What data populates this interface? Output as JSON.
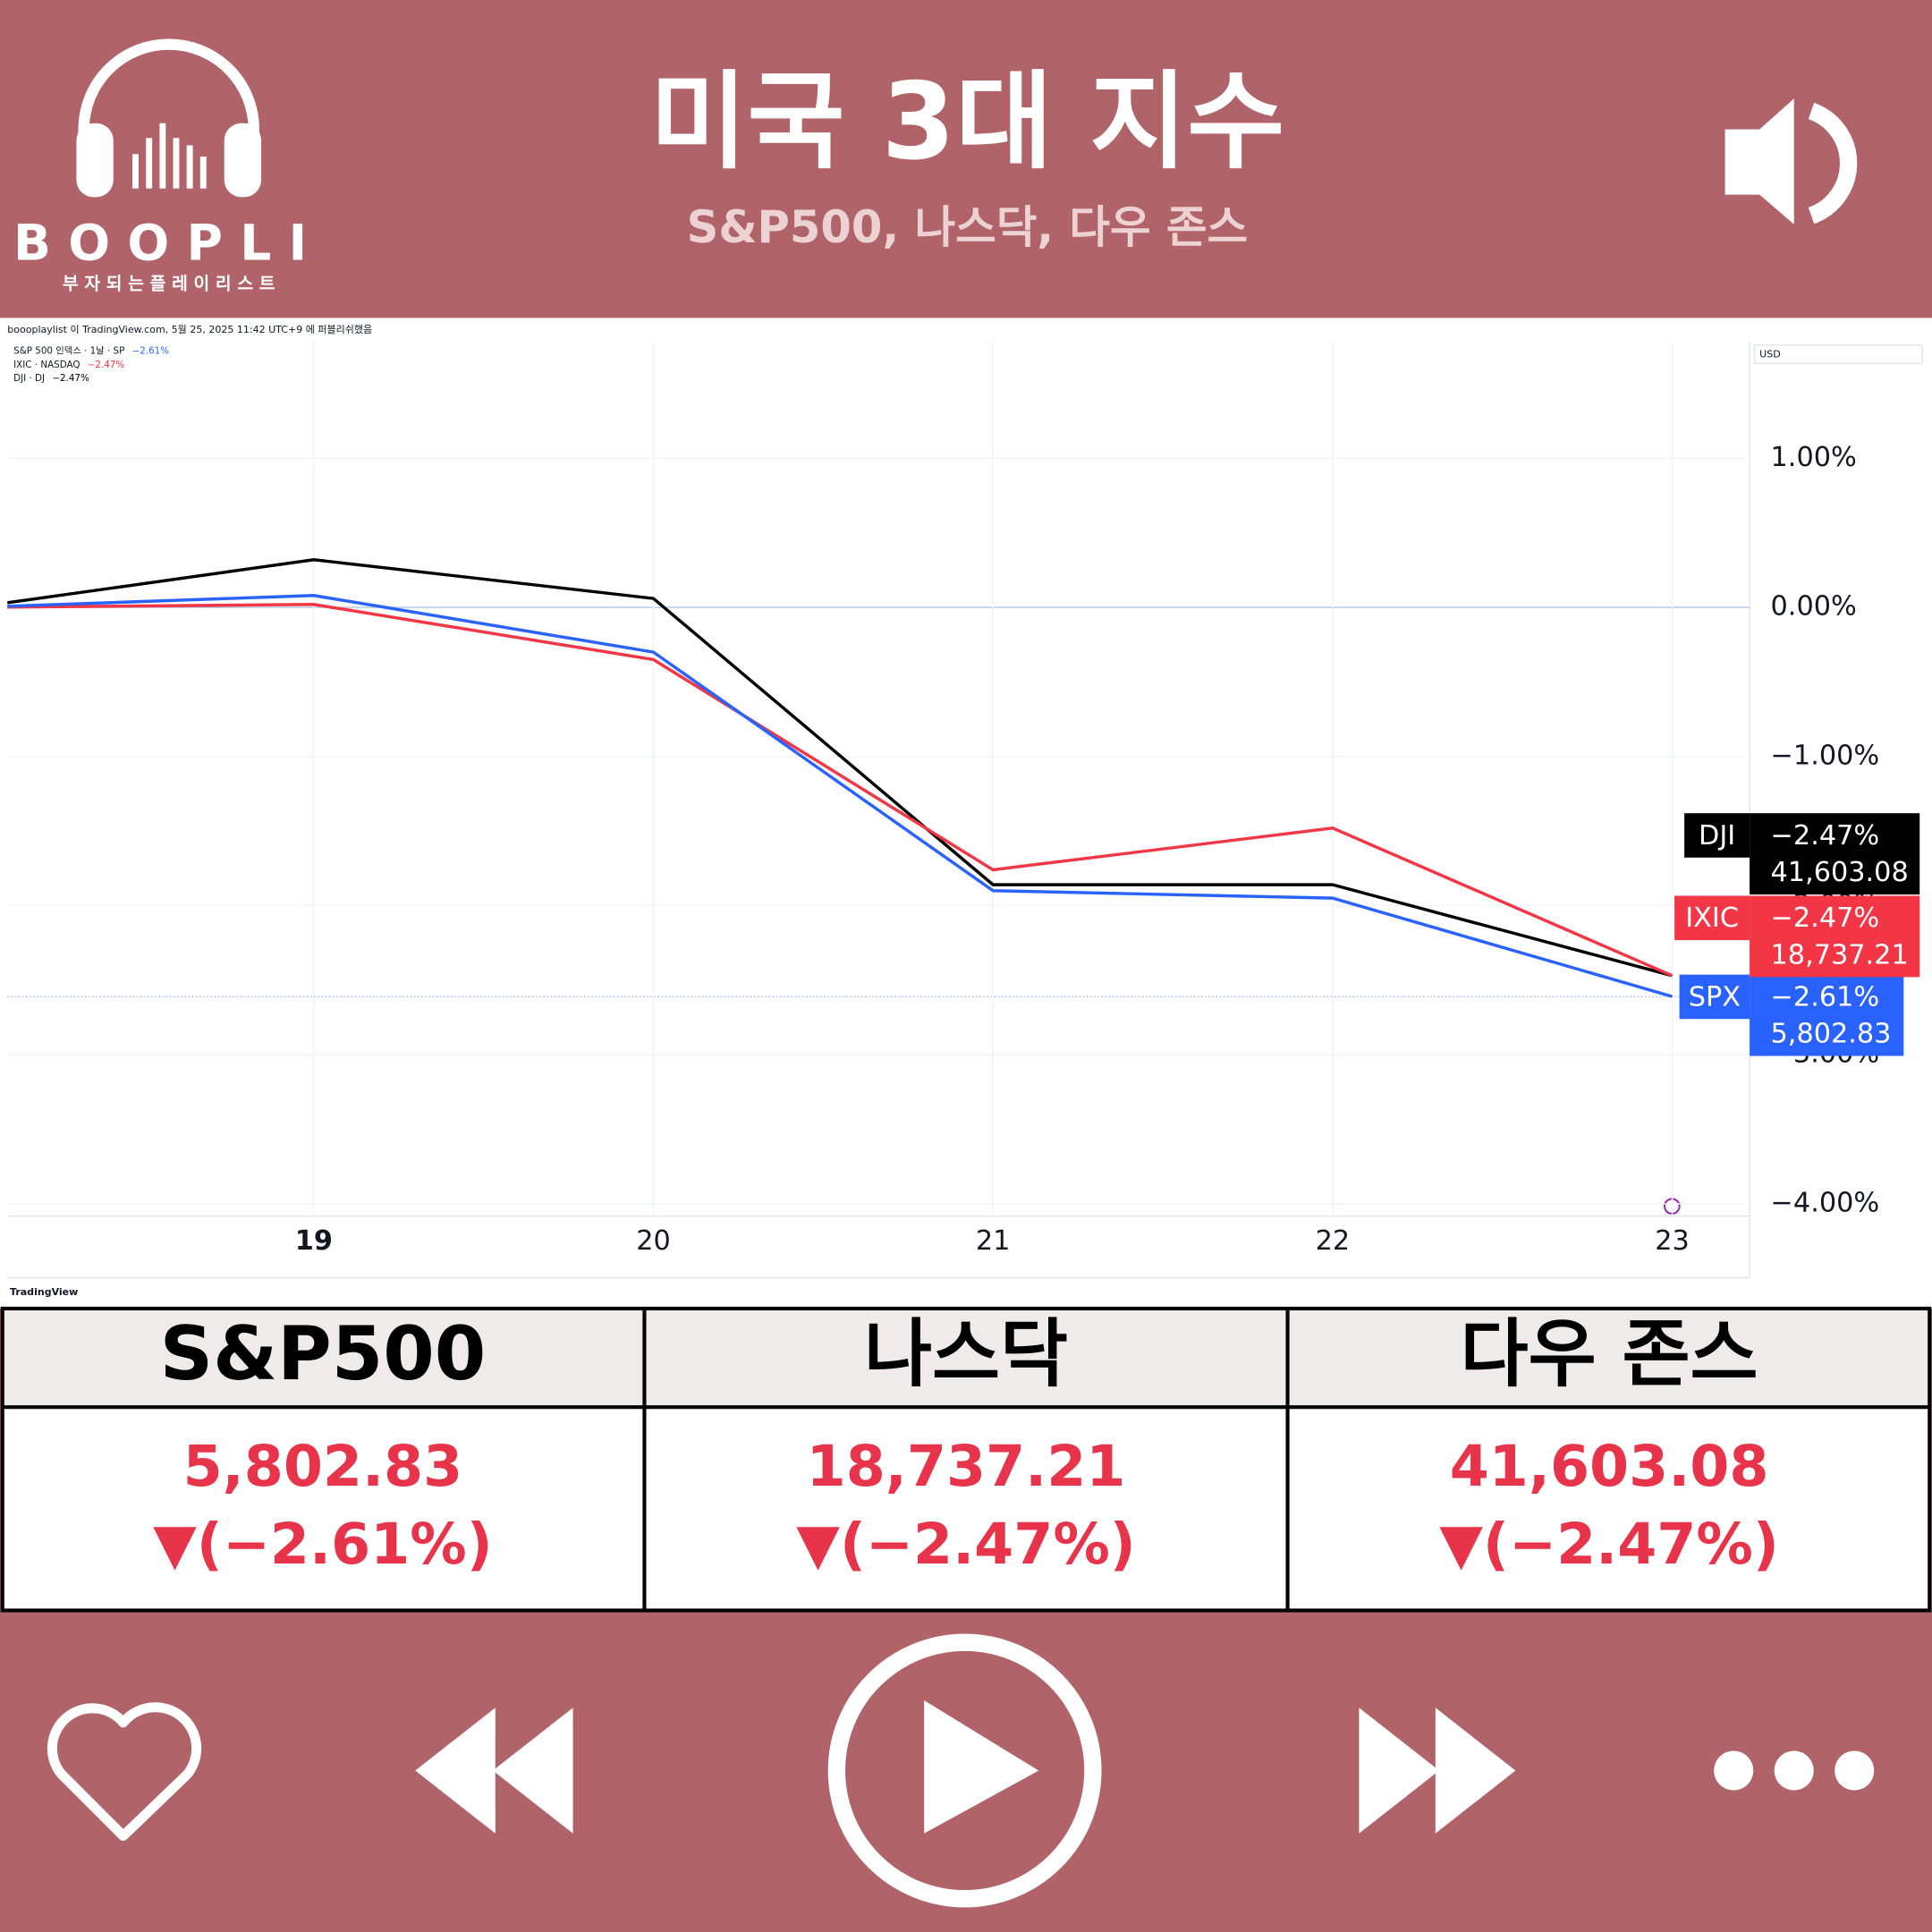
{
  "header": {
    "logo": "BOOPLI",
    "logo_tagline": "부 자 되 는  플 레 이  리 스 트",
    "title": "미국 3대 지수",
    "subtitle": "S&P500, 나스닥, 다우 존스"
  },
  "chart_data": {
    "type": "line",
    "attribution": "boooplaylist 이 TradingView.com, 5월 25, 2025 11:42 UTC+9 에 퍼블리쉬했음",
    "currency": "USD",
    "brand": "TradingView",
    "x": [
      18,
      19,
      20,
      21,
      22,
      23
    ],
    "xlim": [
      18.105,
      23.228
    ],
    "xticks": [
      19,
      20,
      21,
      22,
      23
    ],
    "ylim": [
      -4.083,
      1.785
    ],
    "yticks": [
      {
        "value": 1,
        "label": "1.00%"
      },
      {
        "value": 0,
        "label": "0.00%"
      },
      {
        "value": -1,
        "label": "−1.00%"
      },
      {
        "value": -2,
        "label": "−2.00%"
      },
      {
        "value": -3,
        "label": "−3.00%"
      },
      {
        "value": -4,
        "label": "−4.00%"
      }
    ],
    "grid": true,
    "series": [
      {
        "name": "SPX",
        "legend_name": "S&P 500 인덱스 · 1날 · SP",
        "color": "#2962ff",
        "values": [
          0,
          0.08,
          -0.3,
          -1.9,
          -1.95,
          -2.61
        ],
        "value_labels": [
          null,
          null,
          null,
          null,
          null,
          "−2.61%"
        ],
        "price": "5,802.83"
      },
      {
        "name": "IXIC",
        "legend_name": "IXIC · NASDAQ",
        "color": "#f23645",
        "values": [
          0,
          0.02,
          -0.35,
          -1.76,
          -1.48,
          -2.47
        ],
        "value_labels": [
          null,
          null,
          null,
          null,
          null,
          "−2.47%"
        ],
        "price": "18,737.21"
      },
      {
        "name": "DJI",
        "legend_name": "DJI · DJ",
        "color": "#000000",
        "values": [
          0,
          0.32,
          0.06,
          -1.86,
          -1.86,
          -2.47
        ],
        "value_labels": [
          null,
          null,
          null,
          null,
          null,
          "−2.47%"
        ],
        "price": "41,603.08"
      }
    ]
  },
  "table": {
    "headers": [
      "S&P500",
      "나스닥",
      "다우 존스"
    ],
    "prices": [
      "5,802.83",
      "18,737.21",
      "41,603.08"
    ],
    "changes": [
      "▼(−2.61%)",
      "▼(−2.47%)",
      "▼(−2.47%)"
    ]
  }
}
